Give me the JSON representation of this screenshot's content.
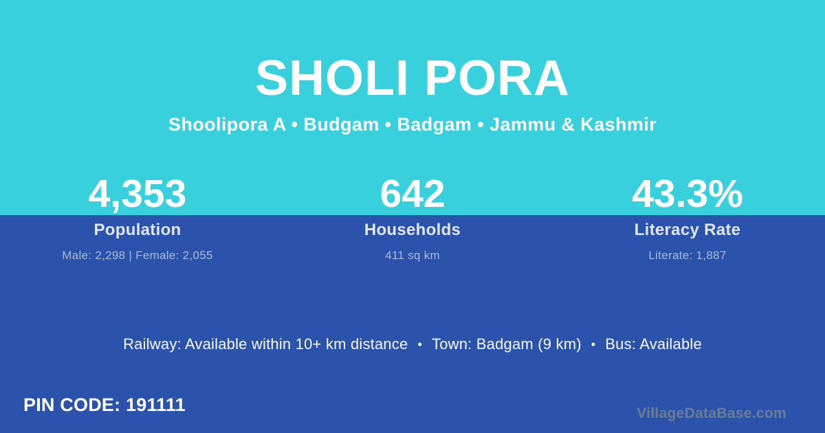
{
  "header": {
    "title": "SHOLI PORA",
    "subtitle": "Shoolipora A • Budgam • Badgam • Jammu & Kashmir"
  },
  "stats": [
    {
      "value": "4,353",
      "label": "Population",
      "detail": "Male: 2,298 | Female: 2,055"
    },
    {
      "value": "642",
      "label": "Households",
      "detail": "411 sq km"
    },
    {
      "value": "43.3%",
      "label": "Literacy Rate",
      "detail": "Literate: 1,887"
    }
  ],
  "amenities": {
    "separator": "•",
    "items": [
      "Railway: Available within 10+ km distance",
      "Town: Badgam (9 km)",
      "Bus: Available"
    ]
  },
  "footer": {
    "pin_code": "PIN CODE: 191111",
    "watermark": "VillageDataBase.com"
  },
  "colors": {
    "top_background": "#38d0dc",
    "bottom_background": "#2b53ac",
    "primary_text": "#ffffff",
    "stat_label_text": "#dfe7f4",
    "stat_detail_text": "#a9bad9",
    "watermark_text": "#76838f"
  }
}
